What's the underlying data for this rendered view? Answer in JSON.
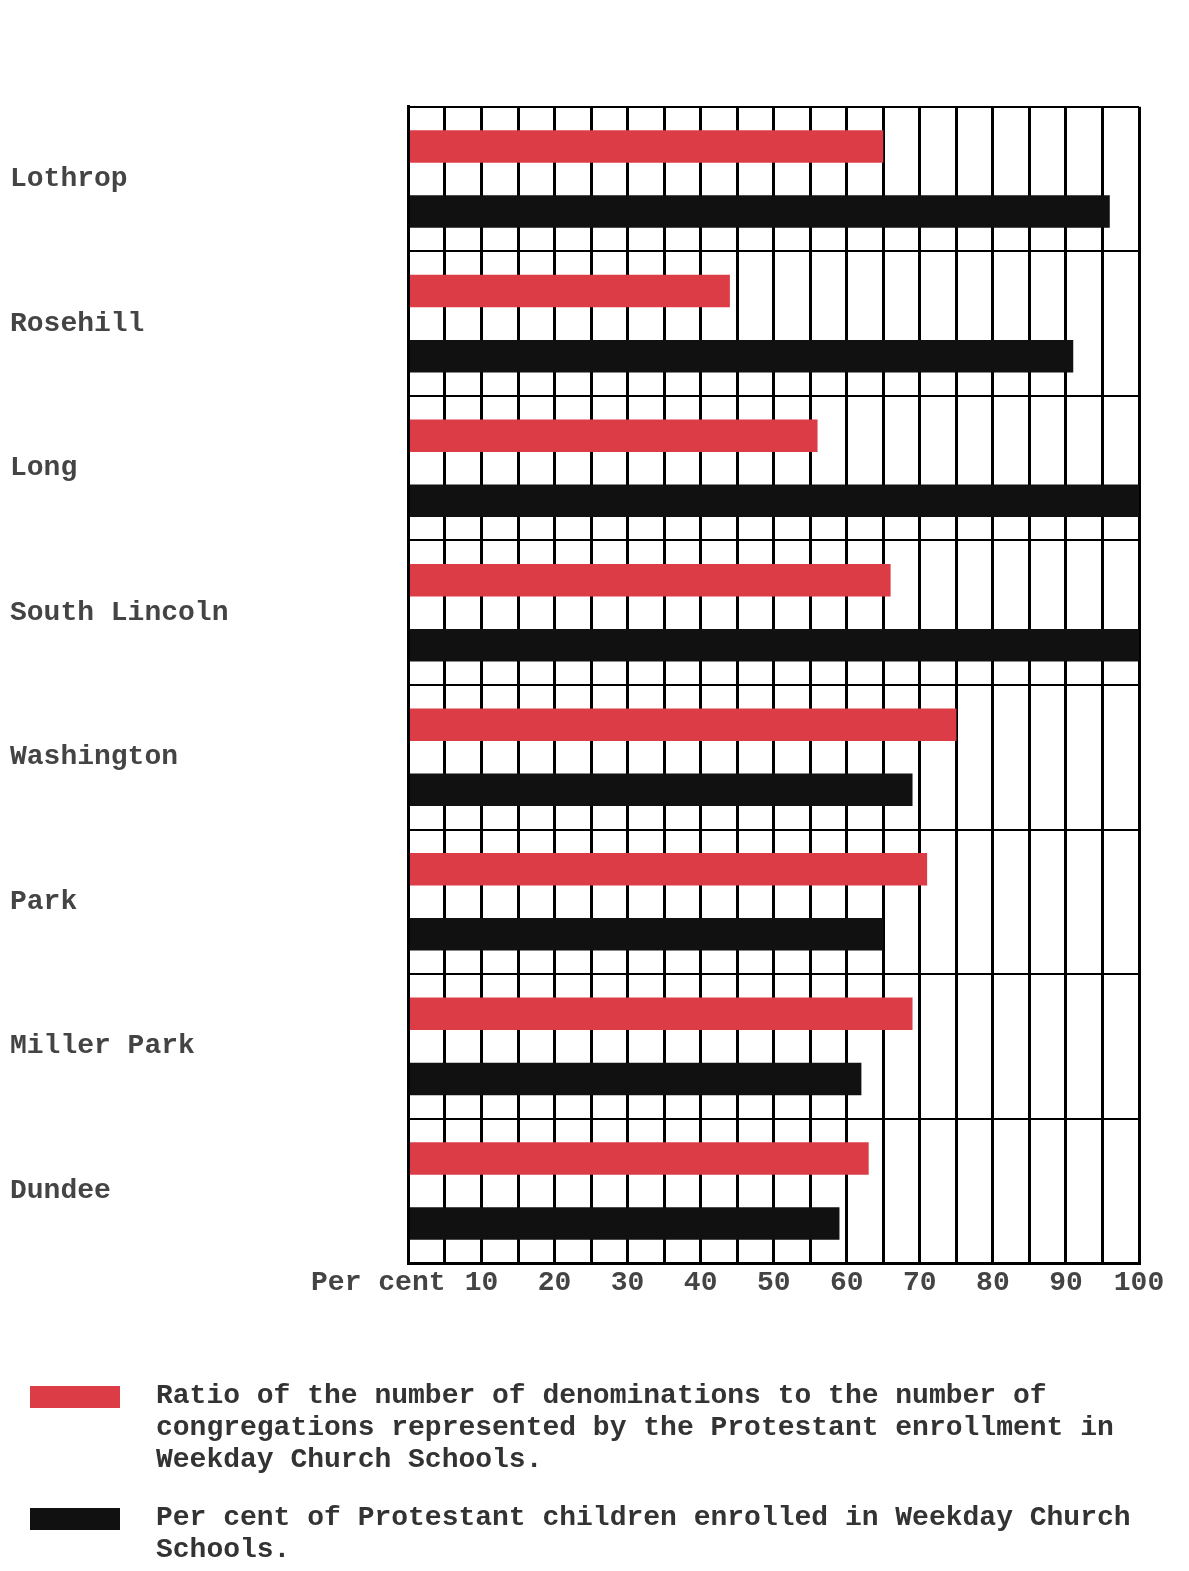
{
  "chart_data": {
    "type": "bar",
    "orientation": "horizontal",
    "categories": [
      "Lothrop",
      "Rosehill",
      "Long",
      "South Lincoln",
      "Washington",
      "Park",
      "Miller Park",
      "Dundee"
    ],
    "series": [
      {
        "name": "Ratio of the number of denominations to the number of congregations represented by the Protestant enrollment in Weekday Church Schools.",
        "color": "#dc3c46",
        "values": [
          65,
          44,
          56,
          66,
          75,
          71,
          69,
          63
        ]
      },
      {
        "name": "Per cent of Protestant children enrolled in Weekday Church Schools.",
        "color": "#111111",
        "values": [
          96,
          91,
          100,
          100,
          69,
          65,
          62,
          59
        ]
      }
    ],
    "xlabel": "Per cent",
    "xlim": [
      0,
      100
    ],
    "xticks": [
      {
        "value": 0,
        "label": null
      },
      {
        "value": 5,
        "label": null
      },
      10,
      {
        "value": 15,
        "label": null
      },
      20,
      {
        "value": 25,
        "label": null
      },
      30,
      {
        "value": 35,
        "label": null
      },
      40,
      {
        "value": 45,
        "label": null
      },
      50,
      {
        "value": 55,
        "label": null
      },
      60,
      {
        "value": 65,
        "label": null
      },
      70,
      {
        "value": 75,
        "label": null
      },
      80,
      {
        "value": 85,
        "label": null
      },
      90,
      {
        "value": 95,
        "label": null
      },
      100
    ],
    "grid": true,
    "legend": "bottom"
  }
}
